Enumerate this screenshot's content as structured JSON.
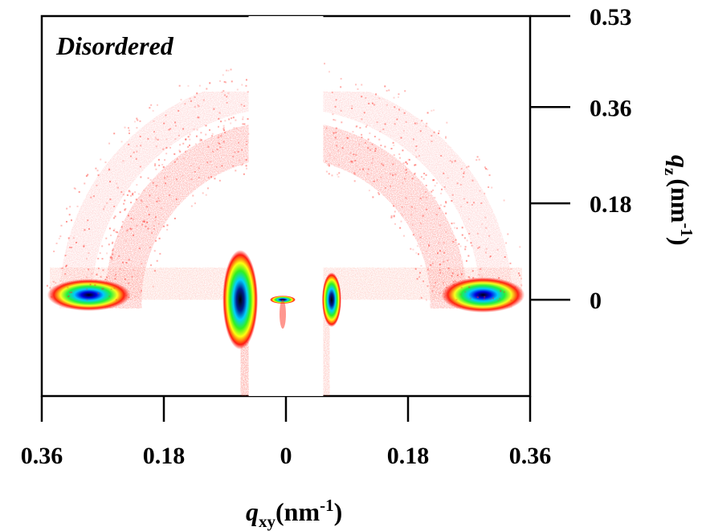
{
  "chart_data": {
    "type": "heatmap",
    "panel_label": "Disordered",
    "x_axis": {
      "symbol": "q",
      "subscript": "xy",
      "unit_base": "(nm",
      "unit_exp": "-1",
      "unit_close": ")",
      "ticks": [
        "0.36",
        "0.18",
        "0",
        "0.18",
        "0.36"
      ],
      "range": [
        -0.36,
        0.36
      ]
    },
    "y_axis": {
      "symbol": "q",
      "subscript": "z",
      "unit_base": "(nm",
      "unit_exp": "-1",
      "unit_close": ")",
      "ticks": [
        "0.53",
        "0.36",
        "0.18",
        "0"
      ],
      "range": [
        -0.18,
        0.53
      ]
    },
    "features": [
      {
        "name": "ring-outer",
        "radius": 0.31,
        "intensity": "low"
      },
      {
        "name": "ring-inner",
        "radius": 0.24,
        "intensity": "medium"
      },
      {
        "name": "equatorial-peak-left",
        "qxy": -0.3,
        "qz": 0,
        "intensity": "max"
      },
      {
        "name": "equatorial-peak-right",
        "qxy": 0.3,
        "qz": 0,
        "intensity": "max"
      },
      {
        "name": "beamstop-edge-left",
        "qxy": -0.07,
        "qz": 0,
        "intensity": "max"
      },
      {
        "name": "beamstop-edge-right",
        "qxy": 0.07,
        "qz": 0,
        "intensity": "high"
      },
      {
        "name": "direct-beam",
        "qxy": 0,
        "qz": 0,
        "intensity": "max"
      }
    ],
    "colormap": [
      "#ffffff",
      "#ff0000",
      "#ffff00",
      "#00ff00",
      "#00c8ff",
      "#0000ff",
      "#000000"
    ]
  }
}
